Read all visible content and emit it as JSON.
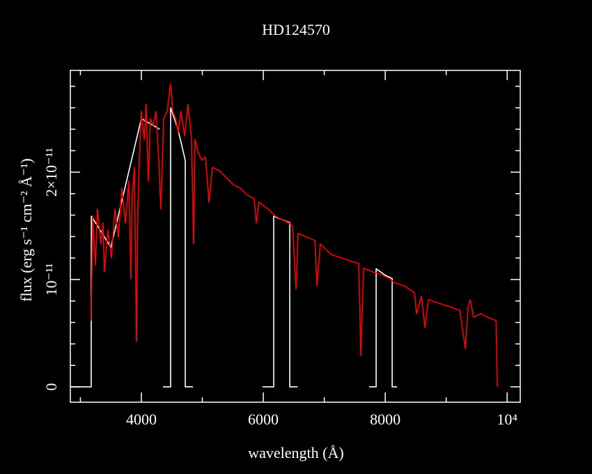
{
  "chart_data": {
    "type": "line",
    "title": "HD124570",
    "xlabel": "wavelength (Å)",
    "ylabel": "flux (erg s⁻¹ cm⁻² Å⁻¹)",
    "xlim": [
      2835,
      10215
    ],
    "ylim": [
      -1.43e-12,
      2.948e-11
    ],
    "xticks": [
      4000,
      6000,
      8000,
      {
        "value": 10000,
        "label": "10⁴"
      }
    ],
    "yticks": [
      0,
      {
        "value": 1e-11,
        "label": "10⁻¹¹"
      },
      {
        "value": 2e-11,
        "label": "2×10⁻¹¹"
      }
    ],
    "xminorticks": [
      3000,
      5000,
      7000,
      9000
    ],
    "yminorticks": [
      2e-12,
      4e-12,
      6e-12,
      8e-12,
      1.2e-11,
      1.4e-11,
      1.6e-11,
      1.8e-11,
      2.2e-11,
      2.4e-11,
      2.6e-11,
      2.8e-11
    ],
    "series": [
      {
        "color": "#ffffff",
        "x": [
          2835,
          3177,
          3180,
          3500,
          4000,
          4300,
          4330,
          4354,
          4480,
          4480,
          4600,
          4720,
          4720,
          4846,
          5000,
          5989,
          6171,
          6171,
          6300,
          6434,
          6434,
          6560,
          7000,
          7737,
          7851,
          7851,
          8000,
          8114,
          8114,
          8194
        ],
        "values": [
          0,
          0,
          1.59e-11,
          1.3e-11,
          2.5e-11,
          2.4e-11,
          null,
          0,
          0,
          2.6e-11,
          2.4e-11,
          2.11e-11,
          0,
          0,
          null,
          0,
          0,
          1.59e-11,
          1.56e-11,
          1.53e-11,
          0,
          0,
          null,
          0,
          0,
          1.1e-11,
          1.04e-11,
          1.01e-11,
          0,
          0
        ]
      },
      {
        "color": "#ff0000",
        "x": [
          3177,
          3200,
          3246,
          3280,
          3337,
          3371,
          3394,
          3451,
          3509,
          3566,
          3623,
          3680,
          3737,
          3794,
          3829,
          3851,
          3886,
          3920,
          3943,
          3966,
          4000,
          4046,
          4080,
          4114,
          4149,
          4194,
          4240,
          4286,
          4320,
          4366,
          4423,
          4480,
          4514,
          4560,
          4606,
          4651,
          4709,
          4766,
          4823,
          4857,
          4880,
          4937,
          4994,
          5051,
          5109,
          5166,
          5280,
          5394,
          5509,
          5623,
          5737,
          5851,
          5886,
          5931,
          6080,
          6194,
          6309,
          6423,
          6480,
          6537,
          6571,
          6709,
          6846,
          6880,
          6937,
          7109,
          7280,
          7451,
          7566,
          7600,
          7646,
          7794,
          7966,
          8080,
          8137,
          8309,
          8480,
          8514,
          8594,
          8651,
          8709,
          8880,
          9051,
          9223,
          9314,
          9360,
          9394,
          9451,
          9566,
          9680,
          9817,
          9840
        ],
        "values": [
          6.17e-12,
          1.591e-11,
          1.136e-11,
          1.656e-11,
          1.331e-11,
          1.526e-11,
          1.071e-11,
          1.461e-11,
          1.201e-11,
          1.656e-11,
          1.396e-11,
          1.851e-11,
          1.526e-11,
          1.916e-11,
          1.006e-11,
          1.786e-11,
          2.045e-11,
          4.22e-12,
          1.656e-11,
          2.11e-11,
          2.565e-11,
          2.305e-11,
          2.63e-11,
          1.916e-11,
          2.5e-11,
          2.435e-11,
          2.565e-11,
          2.11e-11,
          1.656e-11,
          2.5e-11,
          2.565e-11,
          2.825e-11,
          2.565e-11,
          2.5e-11,
          2.37e-11,
          2.565e-11,
          2.338e-11,
          2.63e-11,
          2.305e-11,
          1.331e-11,
          2.305e-11,
          2.175e-11,
          2.11e-11,
          2.143e-11,
          1.721e-11,
          2.045e-11,
          2.013e-11,
          1.948e-11,
          1.883e-11,
          1.851e-11,
          1.786e-11,
          1.753e-11,
          1.526e-11,
          1.721e-11,
          1.656e-11,
          1.591e-11,
          1.558e-11,
          1.526e-11,
          1.494e-11,
          9.09e-12,
          1.429e-11,
          1.396e-11,
          1.364e-11,
          9.42e-12,
          1.331e-11,
          1.234e-11,
          1.201e-11,
          1.169e-11,
          1.149e-11,
          2.92e-12,
          1.104e-11,
          1.071e-11,
          1.039e-11,
          1.006e-11,
          9.74e-12,
          9.42e-12,
          8.77e-12,
          6.82e-12,
          8.44e-12,
          5.52e-12,
          8.12e-12,
          7.79e-12,
          7.47e-12,
          7.14e-12,
          3.57e-12,
          7.47e-12,
          8.12e-12,
          6.49e-12,
          6.82e-12,
          6.49e-12,
          6.17e-12,
          0
        ]
      }
    ]
  }
}
